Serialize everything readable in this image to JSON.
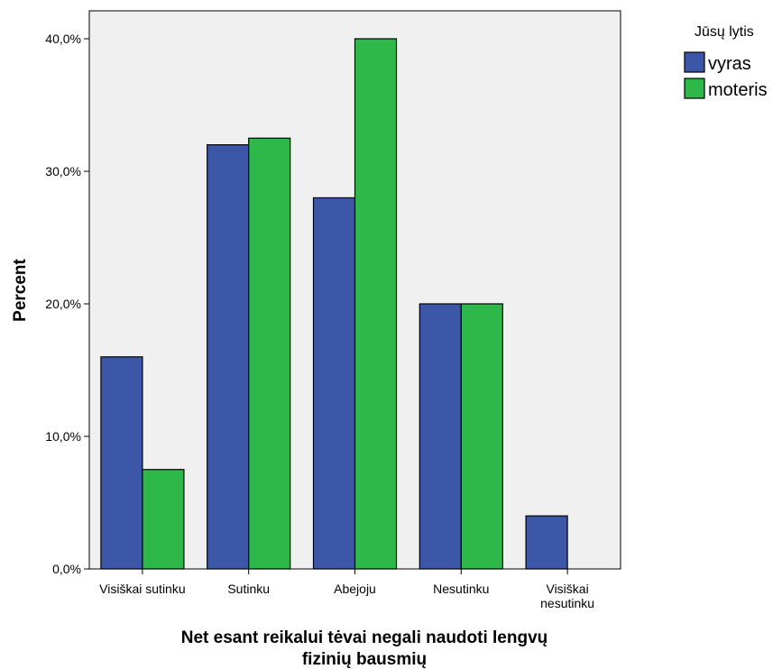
{
  "chart_data": {
    "type": "bar",
    "title": "",
    "xlabel_lines": [
      "Net esant reikalui tėvai  negali naudoti lengvų",
      "fizinių bausmių"
    ],
    "ylabel": "Percent",
    "categories": [
      [
        "Visiškai sutinku"
      ],
      [
        "Sutinku"
      ],
      [
        "Abejoju"
      ],
      [
        "Nesutinku"
      ],
      [
        "Visiškai",
        "nesutinku"
      ]
    ],
    "series": [
      {
        "name": "vyras",
        "color": "#3d57a8",
        "values": [
          16.0,
          32.0,
          28.0,
          20.0,
          4.0
        ]
      },
      {
        "name": "moteris",
        "color": "#2fb84a",
        "values": [
          7.5,
          32.5,
          40.0,
          20.0,
          0.0
        ]
      }
    ],
    "ylim": [
      0,
      40
    ],
    "yticks": [
      0,
      10,
      20,
      30,
      40
    ],
    "ytick_labels": [
      "0,0%",
      "10,0%",
      "20,0%",
      "30,0%",
      "40,0%"
    ],
    "legend_title": "Jūsų lytis",
    "legend_position": "top-right",
    "plot_background": "#f0f0f0",
    "grid": false
  }
}
